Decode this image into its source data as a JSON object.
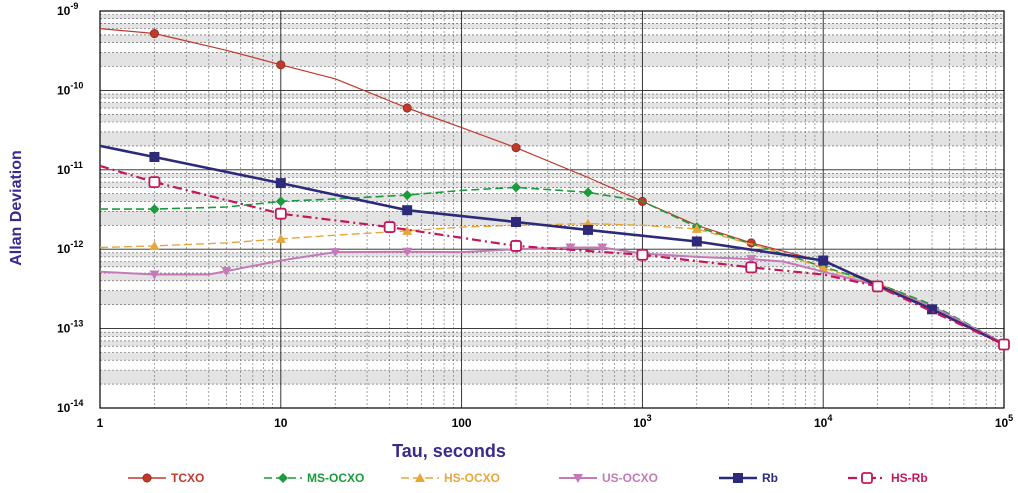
{
  "chart_data": {
    "type": "line",
    "title": "",
    "xlabel": "Tau, seconds",
    "ylabel": "Allan Deviation",
    "x_scale": "log",
    "y_scale": "log",
    "xlim": [
      1,
      100000
    ],
    "ylim": [
      1e-14,
      1e-09
    ],
    "x_ticks": [
      {
        "value": 1,
        "base": "1",
        "exp": ""
      },
      {
        "value": 10,
        "base": "10",
        "exp": ""
      },
      {
        "value": 100,
        "base": "100",
        "exp": ""
      },
      {
        "value": 1000,
        "base": "10",
        "exp": "3"
      },
      {
        "value": 10000,
        "base": "10",
        "exp": "4"
      },
      {
        "value": 100000,
        "base": "10",
        "exp": "5"
      }
    ],
    "y_ticks": [
      {
        "value": 1e-09,
        "base": "10",
        "exp": "-9"
      },
      {
        "value": 1e-10,
        "base": "10",
        "exp": "-10"
      },
      {
        "value": 1e-11,
        "base": "10",
        "exp": "-11"
      },
      {
        "value": 1e-12,
        "base": "10",
        "exp": "-12"
      },
      {
        "value": 1e-13,
        "base": "10",
        "exp": "-13"
      },
      {
        "value": 1e-14,
        "base": "10",
        "exp": "-14"
      }
    ],
    "grid": true,
    "legend_position": "bottom",
    "series": [
      {
        "name": "TCXO",
        "color": "#c0392b",
        "marker": "circle",
        "dash": "solid",
        "stroke_width": 1.2,
        "x": [
          1,
          2,
          5,
          10,
          20,
          50,
          100,
          200,
          500,
          1000,
          2000,
          4000,
          10000,
          20000,
          40000,
          100000
        ],
        "y": [
          6e-10,
          5.2e-10,
          3.2e-10,
          2.1e-10,
          1.4e-10,
          6e-11,
          3.4e-11,
          1.9e-11,
          8e-12,
          4e-12,
          2e-12,
          1.2e-12,
          7e-13,
          3.7e-13,
          1.9e-13,
          6.5e-14
        ],
        "marker_x": [
          2,
          10,
          50,
          200,
          1000,
          4000
        ],
        "marker_y": [
          5.2e-10,
          2.1e-10,
          6e-11,
          1.9e-11,
          4e-12,
          1.2e-12
        ]
      },
      {
        "name": "MS-OCXO",
        "color": "#1a9b3c",
        "marker": "diamond",
        "dash": "dash",
        "stroke_width": 1.6,
        "x": [
          1,
          2,
          5,
          10,
          20,
          50,
          100,
          200,
          500,
          1000,
          2000,
          5000,
          10000,
          20000,
          40000,
          100000
        ],
        "y": [
          3.2e-12,
          3.2e-12,
          3.4e-12,
          4e-12,
          4.3e-12,
          4.8e-12,
          5.5e-12,
          6e-12,
          5.2e-12,
          4e-12,
          1.9e-12,
          1e-12,
          6e-13,
          3.7e-13,
          2e-13,
          6.5e-14
        ],
        "marker_x": [
          2,
          10,
          50,
          200,
          500,
          2000,
          10000
        ],
        "marker_y": [
          3.2e-12,
          4e-12,
          4.8e-12,
          6e-12,
          5.2e-12,
          1.9e-12,
          6e-13
        ]
      },
      {
        "name": "HS-OCXO",
        "color": "#e8a53c",
        "marker": "triangle",
        "dash": "dash",
        "stroke_width": 1.4,
        "x": [
          1,
          2,
          5,
          10,
          20,
          50,
          100,
          200,
          500,
          1000,
          2000,
          5000,
          10000,
          20000,
          40000,
          100000
        ],
        "y": [
          1.05e-12,
          1.1e-12,
          1.2e-12,
          1.35e-12,
          1.5e-12,
          1.7e-12,
          1.9e-12,
          2e-12,
          2.1e-12,
          2e-12,
          1.8e-12,
          1e-12,
          5.8e-13,
          3.6e-13,
          1.9e-13,
          6.5e-14
        ],
        "marker_x": [
          2,
          10,
          50,
          500,
          2000,
          10000
        ],
        "marker_y": [
          1.1e-12,
          1.35e-12,
          1.7e-12,
          2.1e-12,
          1.8e-12,
          5.8e-13
        ]
      },
      {
        "name": "US-OCXO",
        "color": "#c47ab8",
        "marker": "triangle-down",
        "dash": "solid",
        "stroke_width": 2,
        "x": [
          1,
          2,
          4,
          5,
          10,
          20,
          50,
          100,
          200,
          400,
          600,
          1000,
          2000,
          4000,
          6000,
          10000,
          20000,
          40000,
          100000
        ],
        "y": [
          5.2e-13,
          4.8e-13,
          4.8e-13,
          5.3e-13,
          7.2e-13,
          9.2e-13,
          9.3e-13,
          9.2e-13,
          1e-12,
          1.05e-12,
          1.05e-12,
          8.8e-13,
          8e-13,
          7.5e-13,
          7e-13,
          5.2e-13,
          3.5e-13,
          1.9e-13,
          6.5e-14
        ],
        "marker_x": [
          2,
          5,
          20,
          50,
          200,
          400,
          600,
          1000,
          4000
        ],
        "marker_y": [
          4.8e-13,
          5.3e-13,
          9.2e-13,
          9.3e-13,
          1e-12,
          1.05e-12,
          1.05e-12,
          8.8e-13,
          7.5e-13
        ]
      },
      {
        "name": "Rb",
        "color": "#2e2a7a",
        "marker": "square",
        "dash": "solid",
        "stroke_width": 2.6,
        "x": [
          1,
          2,
          10,
          50,
          200,
          500,
          2000,
          10000,
          20000,
          40000,
          100000
        ],
        "y": [
          2e-11,
          1.45e-11,
          6.8e-12,
          3.1e-12,
          2.2e-12,
          1.75e-12,
          1.25e-12,
          7.2e-13,
          3.5e-13,
          1.75e-13,
          6.3e-14
        ],
        "marker_x": [
          2,
          10,
          50,
          200,
          500,
          2000,
          10000,
          40000
        ],
        "marker_y": [
          1.45e-11,
          6.8e-12,
          3.1e-12,
          2.2e-12,
          1.75e-12,
          1.25e-12,
          7.2e-13,
          1.75e-13
        ]
      },
      {
        "name": "HS-Rb",
        "color": "#c2185b",
        "marker": "square-open",
        "dash": "dashdot",
        "stroke_width": 2.2,
        "x": [
          1,
          2,
          10,
          40,
          200,
          1000,
          4000,
          10000,
          20000,
          100000
        ],
        "y": [
          1.12e-11,
          7e-12,
          2.8e-12,
          1.9e-12,
          1.1e-12,
          8.5e-13,
          5.9e-13,
          4.8e-13,
          3.4e-13,
          6.3e-14
        ],
        "marker_x": [
          2,
          10,
          40,
          200,
          1000,
          4000,
          20000,
          100000
        ],
        "marker_y": [
          7e-12,
          2.8e-12,
          1.9e-12,
          1.1e-12,
          8.5e-13,
          5.9e-13,
          3.4e-13,
          6.3e-14
        ]
      }
    ]
  }
}
